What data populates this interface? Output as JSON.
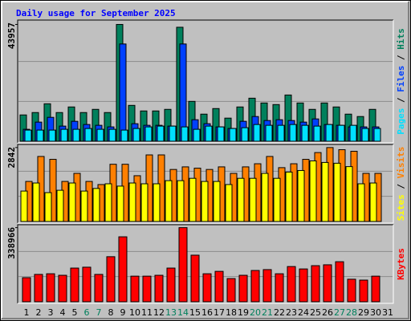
{
  "chart_data": {
    "type": "bar",
    "title": "Daily usage for September 2025",
    "categories": [
      "1",
      "2",
      "3",
      "4",
      "5",
      "6",
      "7",
      "8",
      "9",
      "10",
      "11",
      "12",
      "13",
      "14",
      "15",
      "16",
      "17",
      "18",
      "19",
      "20",
      "21",
      "22",
      "23",
      "24",
      "25",
      "26",
      "27",
      "28",
      "29",
      "30",
      "31"
    ],
    "category_colors": [
      "#000000",
      "#000000",
      "#000000",
      "#000000",
      "#000000",
      "#00805c",
      "#00805c",
      "#000000",
      "#000000",
      "#000000",
      "#000000",
      "#000000",
      "#00805c",
      "#00805c",
      "#000000",
      "#000000",
      "#000000",
      "#000000",
      "#000000",
      "#00805c",
      "#00805c",
      "#000000",
      "#000000",
      "#000000",
      "#000000",
      "#000000",
      "#00805c",
      "#00805c",
      "#000000",
      "#000000",
      "#000000"
    ],
    "panels": [
      {
        "ylim": [
          0,
          45000
        ],
        "yticks": [
          43957
        ],
        "series": [
          {
            "name": "Hits",
            "color": "#00805c",
            "values": [
              9900,
              10800,
              14100,
              10800,
              12900,
              10800,
              12000,
              10800,
              43957,
              13500,
              11400,
              11400,
              12000,
              42900,
              15000,
              10200,
              12300,
              8700,
              12900,
              16200,
              14400,
              13800,
              17400,
              14400,
              12000,
              14400,
              12900,
              10200,
              9300,
              12000,
              null
            ]
          },
          {
            "name": "Files",
            "color": "#0040ff",
            "values": [
              4500,
              7200,
              9000,
              5700,
              7500,
              6300,
              6000,
              5400,
              36600,
              6600,
              6000,
              6000,
              5700,
              36600,
              8100,
              6600,
              5400,
              4800,
              7500,
              9300,
              7800,
              8100,
              7800,
              7200,
              8400,
              6300,
              6000,
              5400,
              5400,
              5400,
              null
            ]
          },
          {
            "name": "Pages",
            "color": "#00e0ff",
            "values": [
              4200,
              4200,
              4200,
              4500,
              4500,
              4800,
              4500,
              4500,
              4200,
              4800,
              5400,
              5700,
              5700,
              5400,
              4500,
              5700,
              5400,
              4800,
              5100,
              6300,
              6000,
              6000,
              6300,
              6000,
              5700,
              6300,
              6000,
              6000,
              4800,
              4800,
              null
            ]
          }
        ]
      },
      {
        "ylim": [
          0,
          2900
        ],
        "yticks": [
          2842
        ],
        "series": [
          {
            "name": "Visits",
            "color": "#ff8000",
            "values": [
              1540,
              2500,
              2390,
              1540,
              1850,
              1540,
              1420,
              2200,
              2200,
              1760,
              2560,
              2560,
              2000,
              2100,
              2050,
              2000,
              2100,
              1850,
              2100,
              2220,
              2500,
              2070,
              2220,
              2390,
              2650,
              2842,
              2760,
              2700,
              1850,
              1850,
              null
            ]
          },
          {
            "name": "Sites",
            "color": "#ffff00",
            "values": [
              1170,
              1480,
              1110,
              1200,
              1480,
              1170,
              1270,
              1450,
              1360,
              1480,
              1450,
              1450,
              1570,
              1570,
              1660,
              1540,
              1540,
              1420,
              1660,
              1660,
              1850,
              1660,
              1900,
              1960,
              2330,
              2270,
              2240,
              2110,
              1450,
              1480,
              null
            ]
          }
        ]
      },
      {
        "ylim": [
          0,
          345000
        ],
        "yticks": [
          338966
        ],
        "series": [
          {
            "name": "KBytes",
            "color": "#ff0000",
            "values": [
              110000,
              125000,
              128000,
              121000,
              154000,
              158000,
              125000,
              206000,
              297000,
              117000,
              117000,
              121000,
              154000,
              338966,
              213000,
              128000,
              139000,
              106000,
              121000,
              143000,
              147000,
              128000,
              161000,
              150000,
              165000,
              169000,
              183000,
              103000,
              99000,
              117000,
              null
            ]
          }
        ]
      }
    ]
  }
}
